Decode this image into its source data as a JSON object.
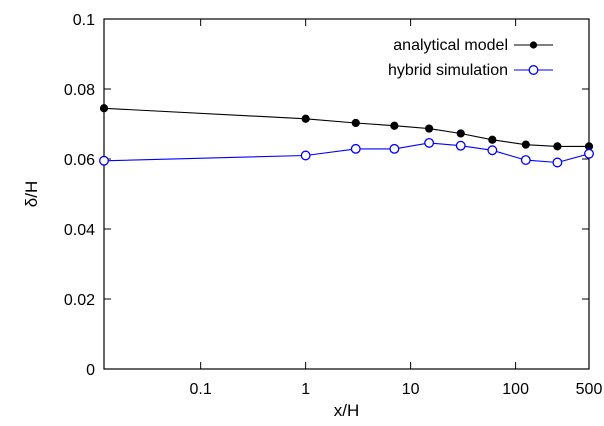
{
  "chart_data": {
    "type": "line",
    "xlabel": "x/H",
    "ylabel": "δ/H",
    "x_scale": "log",
    "xlim": [
      0.012,
      500
    ],
    "ylim": [
      0,
      0.1
    ],
    "x_ticks": [
      {
        "value": 0.1,
        "label": "0.1"
      },
      {
        "value": 1,
        "label": "1"
      },
      {
        "value": 10,
        "label": "10"
      },
      {
        "value": 100,
        "label": "100"
      },
      {
        "value": 500,
        "label": "500"
      }
    ],
    "y_ticks": [
      {
        "value": 0,
        "label": "0"
      },
      {
        "value": 0.02,
        "label": "0.02"
      },
      {
        "value": 0.04,
        "label": "0.04"
      },
      {
        "value": 0.06,
        "label": "0.06"
      },
      {
        "value": 0.08,
        "label": "0.08"
      },
      {
        "value": 0.1,
        "label": "0.1"
      }
    ],
    "grid": false,
    "legend_position": "top-right",
    "series": [
      {
        "name": "analytical model",
        "color": "#000000",
        "marker": "filled-circle",
        "x": [
          0.012,
          1,
          3,
          7,
          15,
          30,
          60,
          125,
          250,
          500
        ],
        "y": [
          0.0745,
          0.0715,
          0.0703,
          0.0695,
          0.0687,
          0.0673,
          0.0655,
          0.0641,
          0.0636,
          0.0636
        ]
      },
      {
        "name": "hybrid simulation",
        "color": "#0000ff",
        "marker": "open-circle",
        "x": [
          0.012,
          1,
          3,
          7,
          15,
          30,
          60,
          125,
          250,
          500
        ],
        "y": [
          0.0595,
          0.061,
          0.0629,
          0.0629,
          0.0646,
          0.0638,
          0.0625,
          0.0597,
          0.059,
          0.0615
        ]
      }
    ]
  }
}
